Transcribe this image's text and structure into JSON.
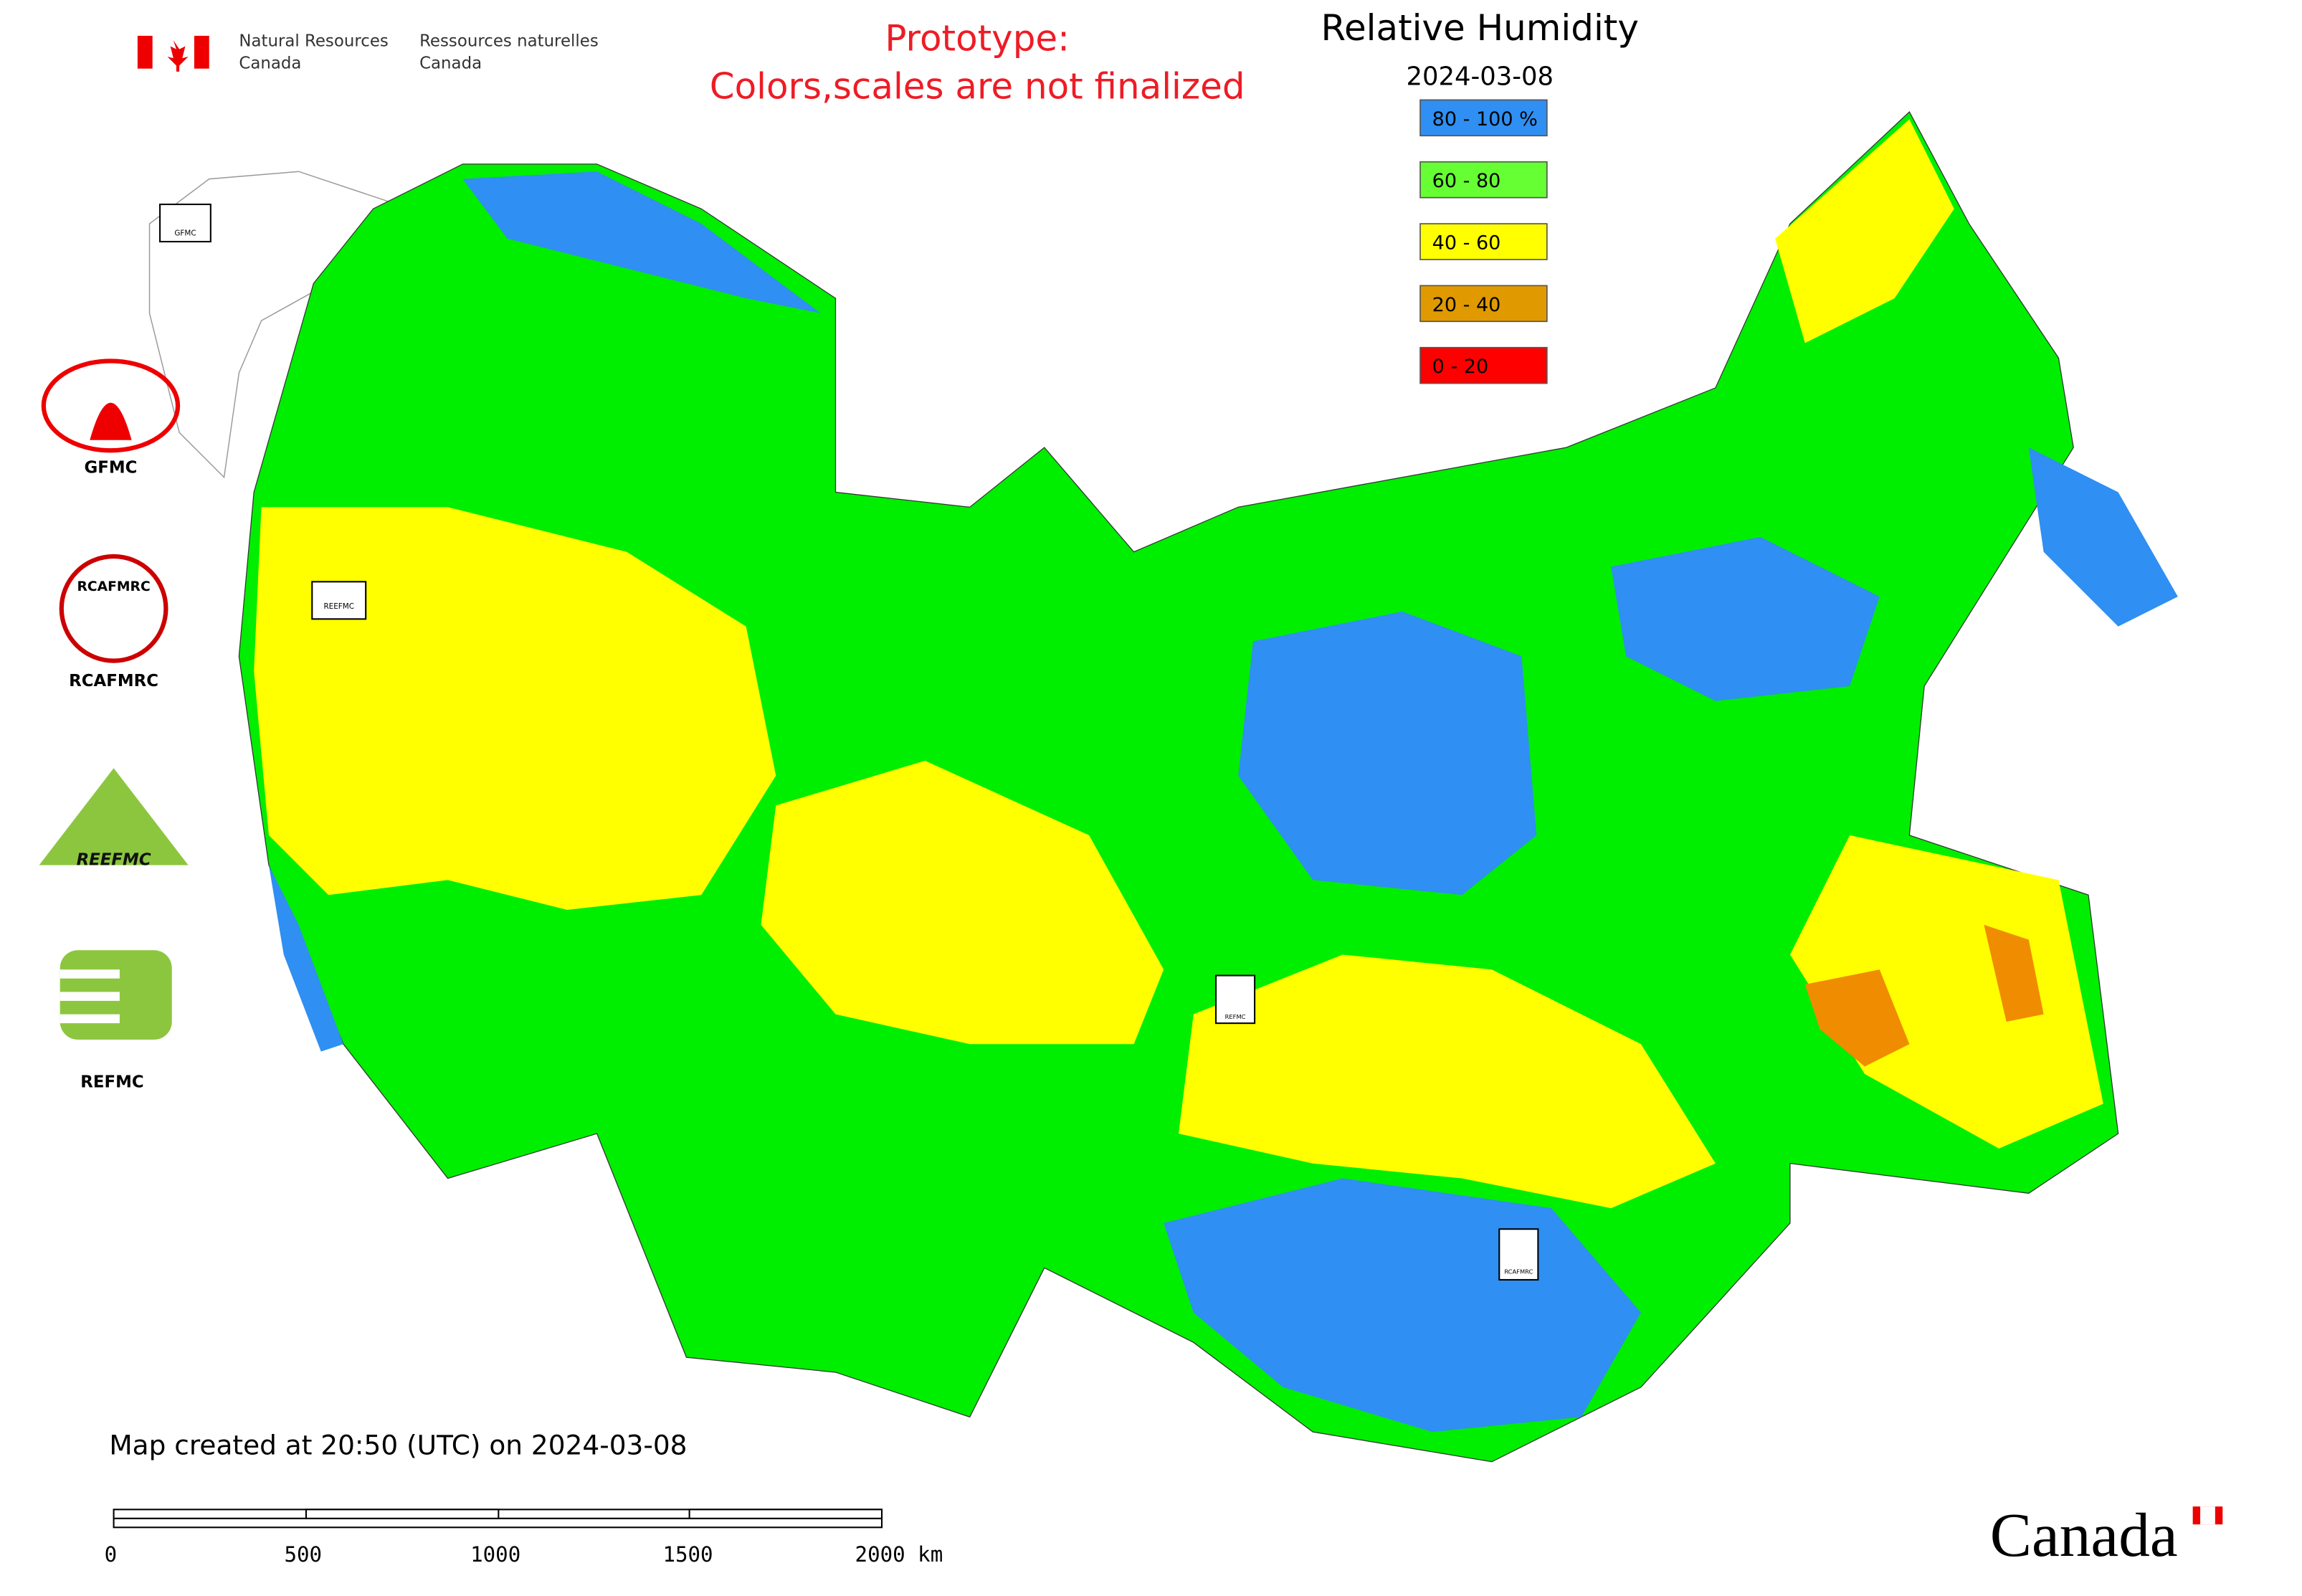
{
  "header": {
    "agency_en": [
      "Natural Resources",
      "Canada"
    ],
    "agency_fr": [
      "Ressources naturelles",
      "Canada"
    ],
    "notice": [
      "Prototype:",
      "Colors,scales are not finalized"
    ]
  },
  "legend": {
    "title": "Relative Humidity",
    "date": "2024-03-08",
    "items": [
      {
        "label": "80 - 100 %",
        "color": "#2f8ff2"
      },
      {
        "label": "60 - 80",
        "color": "#66ff33"
      },
      {
        "label": "40 - 60",
        "color": "#ffff00"
      },
      {
        "label": "20 - 40",
        "color": "#e09a00"
      },
      {
        "label": "0 - 20",
        "color": "#ff0000"
      }
    ]
  },
  "logos": [
    "GFMC",
    "RCAFMRC",
    "REEFMC",
    "REFMC"
  ],
  "footer": {
    "created": "Map created at 20:50 (UTC) on 2024-03-08",
    "scale_labels": [
      "0",
      "500",
      "1000",
      "1500",
      "2000 km"
    ],
    "wordmark": "Canada"
  }
}
